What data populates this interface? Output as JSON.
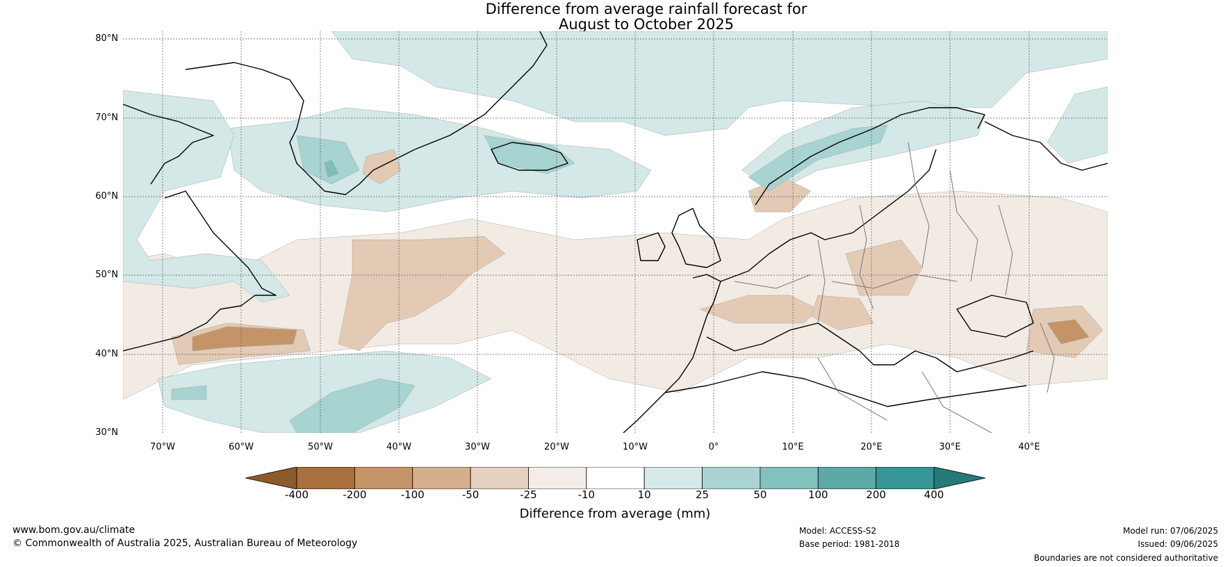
{
  "title": {
    "line1": "Difference from average rainfall forecast for",
    "line2": "August to October 2025"
  },
  "map": {
    "latitudes": [
      "80°N",
      "70°N",
      "60°N",
      "50°N",
      "40°N",
      "30°N"
    ],
    "longitudes": [
      "70°W",
      "60°W",
      "50°W",
      "40°W",
      "30°W",
      "20°W",
      "10°W",
      "0°",
      "10°E",
      "20°E",
      "30°E",
      "40°E"
    ],
    "lon_range": [
      -75,
      50
    ],
    "lat_range": [
      30,
      81
    ],
    "colors": {
      "dry_strong": "#a26530",
      "dry_med": "#c49468",
      "dry_light": "#e3cab4",
      "dry_faint": "#f2ebe4",
      "wet_faint": "#d3e8e7",
      "wet_light": "#a7d3d1",
      "wet_med": "#7bbebb",
      "coast": "#000000",
      "border": "#777777"
    }
  },
  "colorbar": {
    "ticks": [
      "-400",
      "-200",
      "-100",
      "-50",
      "-25",
      "-10",
      "10",
      "25",
      "50",
      "100",
      "200",
      "400"
    ],
    "colors": [
      "#8c5a2b",
      "#a8703c",
      "#c49468",
      "#d5ae8c",
      "#e6d0be",
      "#f4ede7",
      "#ffffff",
      "#d6eaea",
      "#a9d4d3",
      "#83c1bf",
      "#5ca9a8",
      "#359695",
      "#277a7a"
    ],
    "label": "Difference from average (mm)"
  },
  "footer": {
    "url": "www.bom.gov.au/climate",
    "copyright": "© Commonwealth of Australia 2025, Australian Bureau of Meteorology",
    "model": "Model: ACCESS-S2",
    "base_period": "Base period: 1981-2018",
    "model_run": "Model run: 07/06/2025",
    "issued": "Issued: 09/06/2025",
    "disclaimer": "Boundaries are not considered authoritative"
  }
}
